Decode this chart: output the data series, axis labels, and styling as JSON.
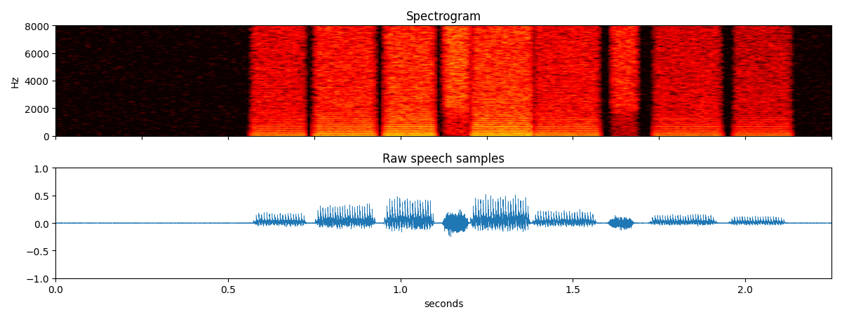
{
  "title_spectrogram": "Spectrogram",
  "title_waveform": "Raw speech samples",
  "xlabel": "seconds",
  "ylabel_spec": "Hz",
  "spec_ylim": [
    0,
    8000
  ],
  "spec_yticks": [
    0,
    2000,
    4000,
    6000,
    8000
  ],
  "wave_ylim": [
    -1.0,
    1.0
  ],
  "wave_yticks": [
    -1.0,
    -0.5,
    0.0,
    0.5,
    1.0
  ],
  "wave_xlim": [
    0.0,
    2.25
  ],
  "wave_xticks": [
    0.0,
    0.5,
    1.0,
    1.5,
    2.0
  ],
  "sample_rate": 16000,
  "duration": 2.25,
  "line_color": "#1f77b4",
  "background_color": "#ffffff",
  "nfft": 512,
  "noverlap": 400,
  "spec_vmin": -100,
  "spec_vmax": -20,
  "segments": [
    {
      "t0": 0.57,
      "t1": 0.73,
      "amp": 0.2,
      "f0": 130,
      "voiced": true
    },
    {
      "t0": 0.75,
      "t1": 0.93,
      "amp": 0.35,
      "f0": 140,
      "voiced": true
    },
    {
      "t0": 0.95,
      "t1": 1.1,
      "amp": 0.48,
      "f0": 135,
      "voiced": true
    },
    {
      "t0": 1.12,
      "t1": 1.2,
      "amp": 0.28,
      "f0": 145,
      "voiced": false
    },
    {
      "t0": 1.2,
      "t1": 1.38,
      "amp": 0.52,
      "f0": 138,
      "voiced": true
    },
    {
      "t0": 1.38,
      "t1": 1.57,
      "amp": 0.25,
      "f0": 132,
      "voiced": true
    },
    {
      "t0": 1.6,
      "t1": 1.68,
      "amp": 0.14,
      "f0": 140,
      "voiced": false
    },
    {
      "t0": 1.72,
      "t1": 1.92,
      "amp": 0.16,
      "f0": 136,
      "voiced": true
    },
    {
      "t0": 1.95,
      "t1": 2.12,
      "amp": 0.13,
      "f0": 133,
      "voiced": true
    }
  ]
}
